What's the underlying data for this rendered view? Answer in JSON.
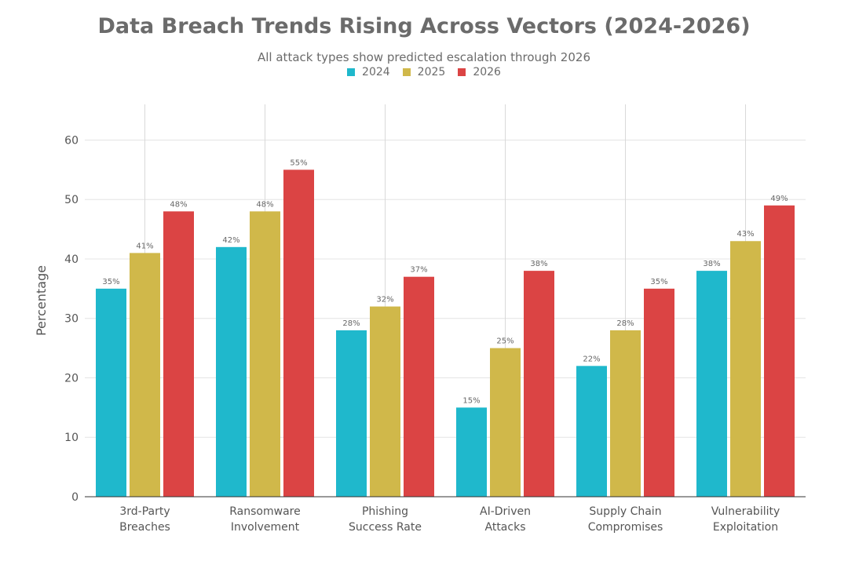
{
  "title": "Data Breach Trends Rising Across Vectors (2024-2026)",
  "subtitle": "All attack types show predicted escalation through 2026",
  "chart_data": {
    "type": "bar",
    "title": "Data Breach Trends Rising Across Vectors (2024-2026)",
    "subtitle": "All attack types show predicted escalation through 2026",
    "xlabel": "",
    "ylabel": "Percentage",
    "ylim": [
      0,
      66
    ],
    "yticks": [
      0,
      10,
      20,
      30,
      40,
      50,
      60
    ],
    "grid": true,
    "legend_position": "top-center",
    "categories": [
      [
        "3rd-Party",
        "Breaches"
      ],
      [
        "Ransomware",
        "Involvement"
      ],
      [
        "Phishing",
        "Success Rate"
      ],
      [
        "AI-Driven",
        "Attacks"
      ],
      [
        "Supply Chain",
        "Compromises"
      ],
      [
        "Vulnerability",
        "Exploitation"
      ]
    ],
    "series": [
      {
        "name": "2024",
        "color": "#1fb8cc",
        "values": [
          35,
          42,
          28,
          15,
          22,
          38
        ]
      },
      {
        "name": "2025",
        "color": "#d0b84a",
        "values": [
          41,
          48,
          32,
          25,
          28,
          43
        ]
      },
      {
        "name": "2026",
        "color": "#db4444",
        "values": [
          48,
          55,
          37,
          38,
          35,
          49
        ]
      }
    ],
    "value_suffix": "%"
  }
}
